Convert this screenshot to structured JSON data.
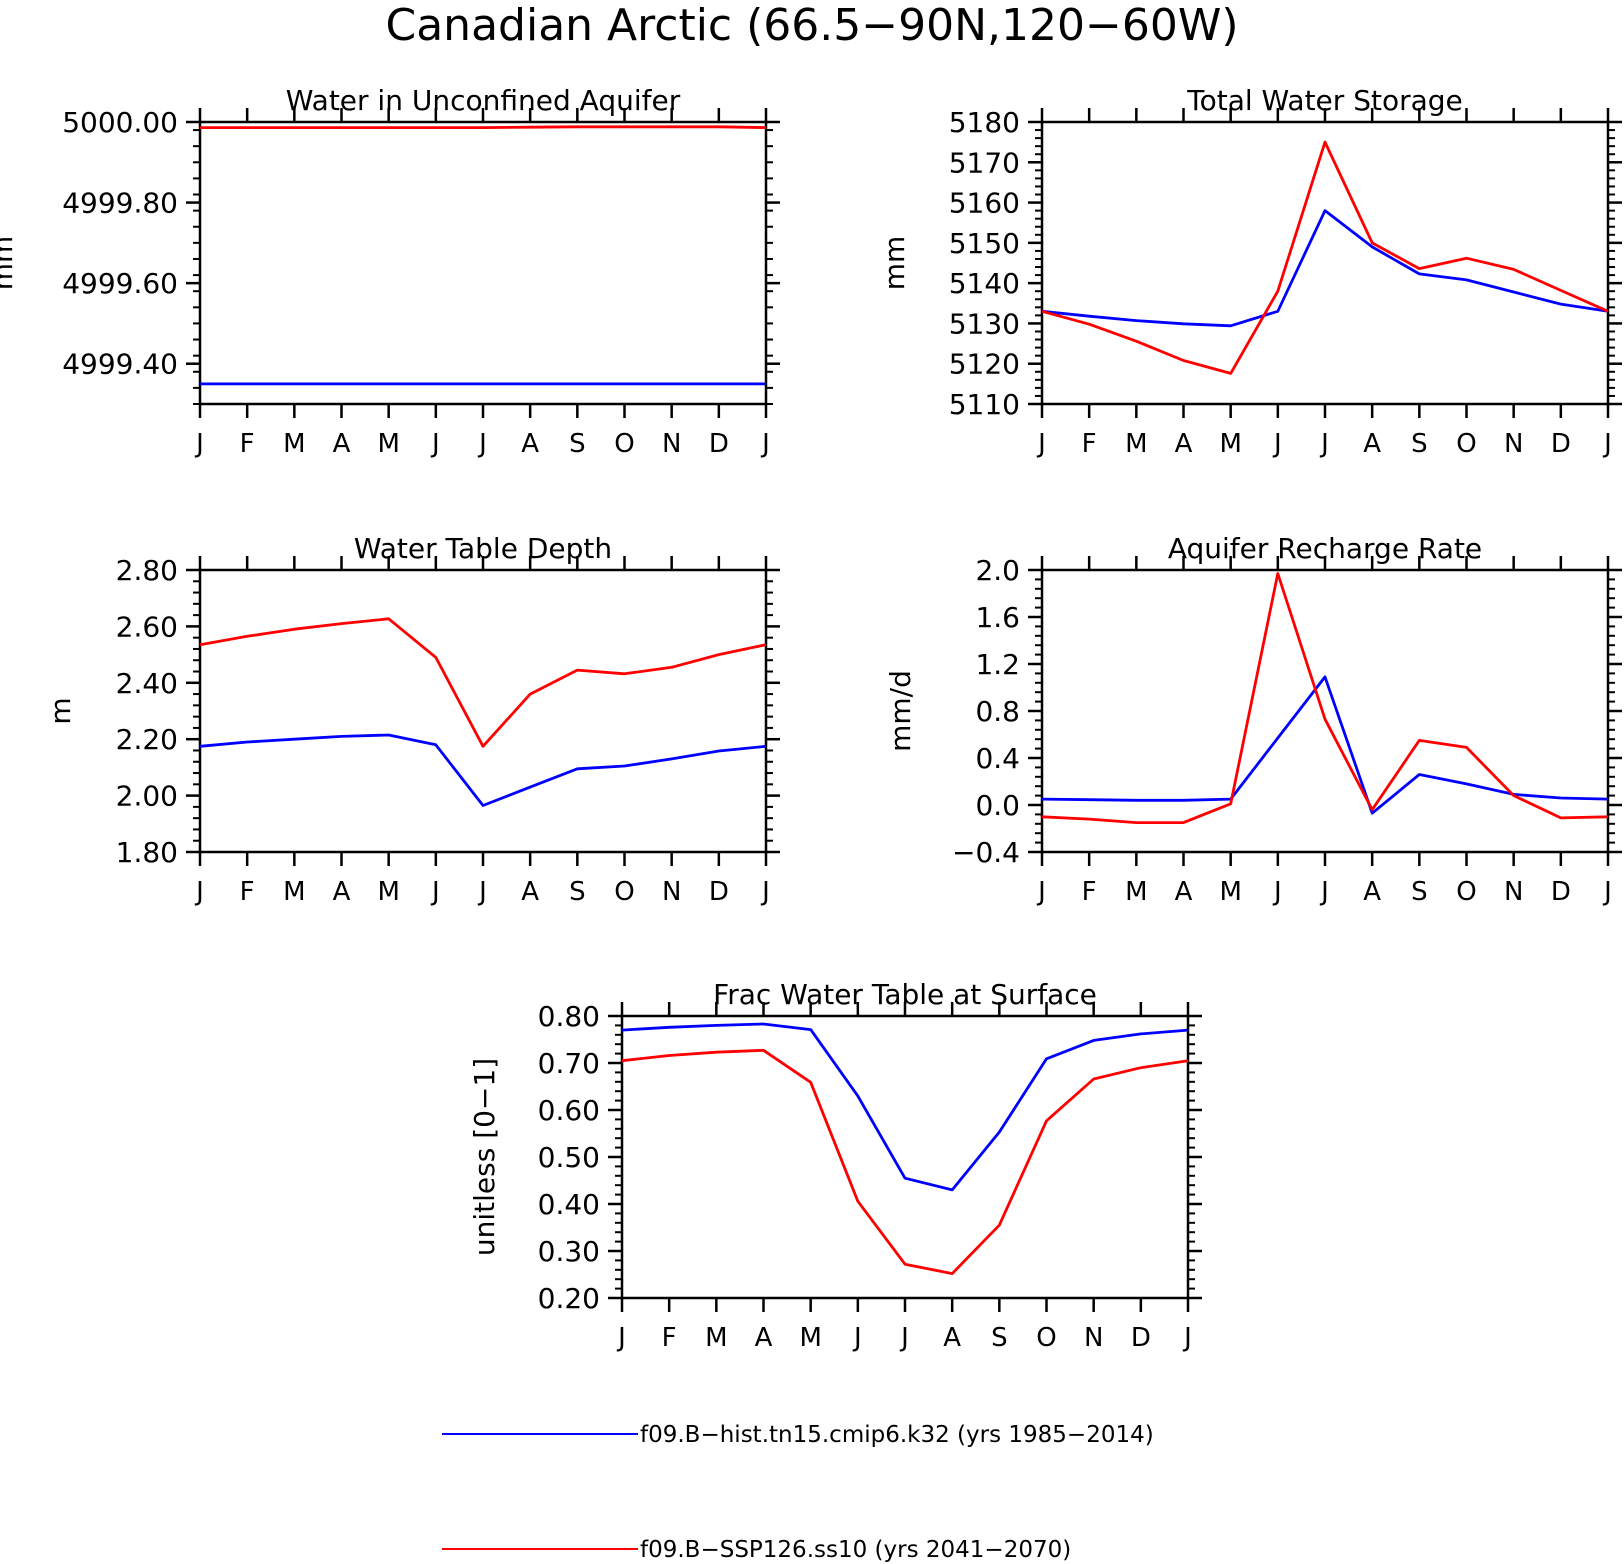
{
  "figure": {
    "title": "Canadian Arctic (66.5−90N,120−60W)"
  },
  "legend": {
    "entries": [
      {
        "label": "f09.B−hist.tn15.cmip6.k32 (yrs 1985−2014)",
        "color": "#0000ff"
      },
      {
        "label": "f09.B−SSP126.ss10 (yrs 2041−2070)",
        "color": "#ff0000"
      }
    ]
  },
  "chart_data": [
    {
      "id": "aquifer",
      "type": "line",
      "title": "Water in Unconfined Aquifer",
      "ylabel": "mm",
      "categories": [
        "J",
        "F",
        "M",
        "A",
        "M",
        "J",
        "J",
        "A",
        "S",
        "O",
        "N",
        "D",
        "J"
      ],
      "ylim": [
        4999.3,
        5000.0
      ],
      "yticks": [
        "5000.00",
        "4999.80",
        "4999.60",
        "4999.40"
      ],
      "ytick_values": [
        5000.0,
        4999.8,
        4999.6,
        4999.4
      ],
      "series": [
        {
          "color": "#0000ff",
          "values": [
            4999.35,
            4999.35,
            4999.35,
            4999.35,
            4999.35,
            4999.35,
            4999.35,
            4999.35,
            4999.35,
            4999.35,
            4999.35,
            4999.35,
            4999.35
          ]
        },
        {
          "color": "#ff0000",
          "values": [
            4999.986,
            4999.986,
            4999.986,
            4999.986,
            4999.986,
            4999.986,
            4999.986,
            4999.987,
            4999.988,
            4999.988,
            4999.988,
            4999.988,
            4999.986
          ]
        }
      ]
    },
    {
      "id": "tws",
      "type": "line",
      "title": "Total Water Storage",
      "ylabel": "mm",
      "categories": [
        "J",
        "F",
        "M",
        "A",
        "M",
        "J",
        "J",
        "A",
        "S",
        "O",
        "N",
        "D",
        "J"
      ],
      "ylim": [
        5110,
        5180
      ],
      "yticks": [
        "5180",
        "5170",
        "5160",
        "5150",
        "5140",
        "5130",
        "5120",
        "5110"
      ],
      "ytick_values": [
        5180,
        5170,
        5160,
        5150,
        5140,
        5130,
        5120,
        5110
      ],
      "series": [
        {
          "color": "#0000ff",
          "values": [
            5133,
            5131.8,
            5130.7,
            5129.9,
            5129.4,
            5133,
            5158,
            5149,
            5142.3,
            5140.8,
            5137.8,
            5134.8,
            5133
          ]
        },
        {
          "color": "#ff0000",
          "values": [
            5133,
            5129.8,
            5125.6,
            5120.8,
            5117.6,
            5138,
            5175,
            5150,
            5143.6,
            5146.2,
            5143.4,
            5138.2,
            5133
          ]
        }
      ]
    },
    {
      "id": "wtd",
      "type": "line",
      "title": "Water Table Depth",
      "ylabel": "m",
      "categories": [
        "J",
        "F",
        "M",
        "A",
        "M",
        "J",
        "J",
        "A",
        "S",
        "O",
        "N",
        "D",
        "J"
      ],
      "ylim": [
        1.8,
        2.8
      ],
      "yticks": [
        "2.80",
        "2.60",
        "2.40",
        "2.20",
        "2.00",
        "1.80"
      ],
      "ytick_values": [
        2.8,
        2.6,
        2.4,
        2.2,
        2.0,
        1.8
      ],
      "series": [
        {
          "color": "#0000ff",
          "values": [
            2.175,
            2.19,
            2.2,
            2.21,
            2.215,
            2.18,
            1.965,
            2.03,
            2.095,
            2.105,
            2.13,
            2.158,
            2.175
          ]
        },
        {
          "color": "#ff0000",
          "values": [
            2.535,
            2.565,
            2.59,
            2.61,
            2.627,
            2.49,
            2.175,
            2.36,
            2.445,
            2.432,
            2.455,
            2.5,
            2.535
          ]
        }
      ]
    },
    {
      "id": "recharge",
      "type": "line",
      "title": "Aquifer Recharge Rate",
      "ylabel": "mm/d",
      "categories": [
        "J",
        "F",
        "M",
        "A",
        "M",
        "J",
        "J",
        "A",
        "S",
        "O",
        "N",
        "D",
        "J"
      ],
      "ylim": [
        -0.4,
        2.0
      ],
      "yticks": [
        "2.0",
        "1.6",
        "1.2",
        "0.8",
        "0.4",
        "0.0",
        "−0.4"
      ],
      "ytick_values": [
        2.0,
        1.6,
        1.2,
        0.8,
        0.4,
        0.0,
        -0.4
      ],
      "series": [
        {
          "color": "#0000ff",
          "values": [
            0.05,
            0.045,
            0.04,
            0.04,
            0.05,
            0.57,
            1.09,
            -0.07,
            0.26,
            0.18,
            0.09,
            0.06,
            0.05
          ]
        },
        {
          "color": "#ff0000",
          "values": [
            -0.1,
            -0.12,
            -0.15,
            -0.15,
            0.01,
            1.97,
            0.73,
            -0.04,
            0.55,
            0.49,
            0.08,
            -0.11,
            -0.1
          ]
        }
      ]
    },
    {
      "id": "frac",
      "type": "line",
      "title": "Frac Water Table at Surface",
      "ylabel": "unitless [0−1]",
      "categories": [
        "J",
        "F",
        "M",
        "A",
        "M",
        "J",
        "J",
        "A",
        "S",
        "O",
        "N",
        "D",
        "J"
      ],
      "ylim": [
        0.2,
        0.8
      ],
      "yticks": [
        "0.80",
        "0.70",
        "0.60",
        "0.50",
        "0.40",
        "0.30",
        "0.20"
      ],
      "ytick_values": [
        0.8,
        0.7,
        0.6,
        0.5,
        0.4,
        0.3,
        0.2
      ],
      "series": [
        {
          "color": "#0000ff",
          "values": [
            0.77,
            0.776,
            0.78,
            0.783,
            0.771,
            0.63,
            0.455,
            0.43,
            0.553,
            0.709,
            0.748,
            0.762,
            0.77
          ]
        },
        {
          "color": "#ff0000",
          "values": [
            0.705,
            0.716,
            0.723,
            0.727,
            0.659,
            0.406,
            0.272,
            0.252,
            0.355,
            0.577,
            0.666,
            0.69,
            0.705
          ]
        }
      ]
    }
  ]
}
